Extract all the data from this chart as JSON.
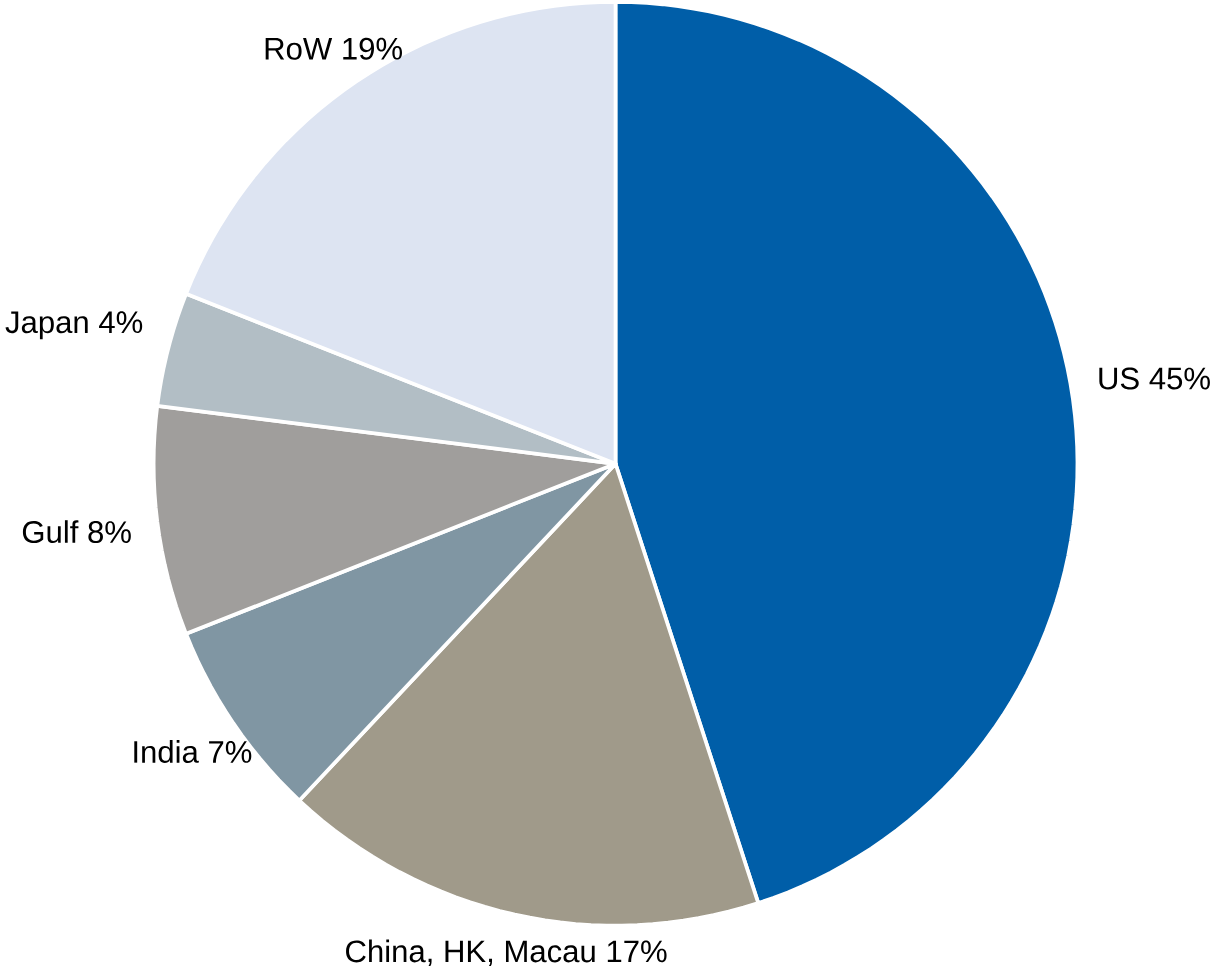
{
  "chart_data": {
    "type": "pie",
    "categories": [
      "US",
      "China, HK, Macau",
      "India",
      "Gulf",
      "Japan",
      "RoW"
    ],
    "values": [
      45,
      17,
      7,
      8,
      4,
      19
    ],
    "value_labels": [
      "45%",
      "17%",
      "7%",
      "8%",
      "4%",
      "19%"
    ],
    "colors": [
      "#005ea8",
      "#a09a8a",
      "#8096a3",
      "#a09e9c",
      "#b2bec5",
      "#dde4f2"
    ]
  }
}
